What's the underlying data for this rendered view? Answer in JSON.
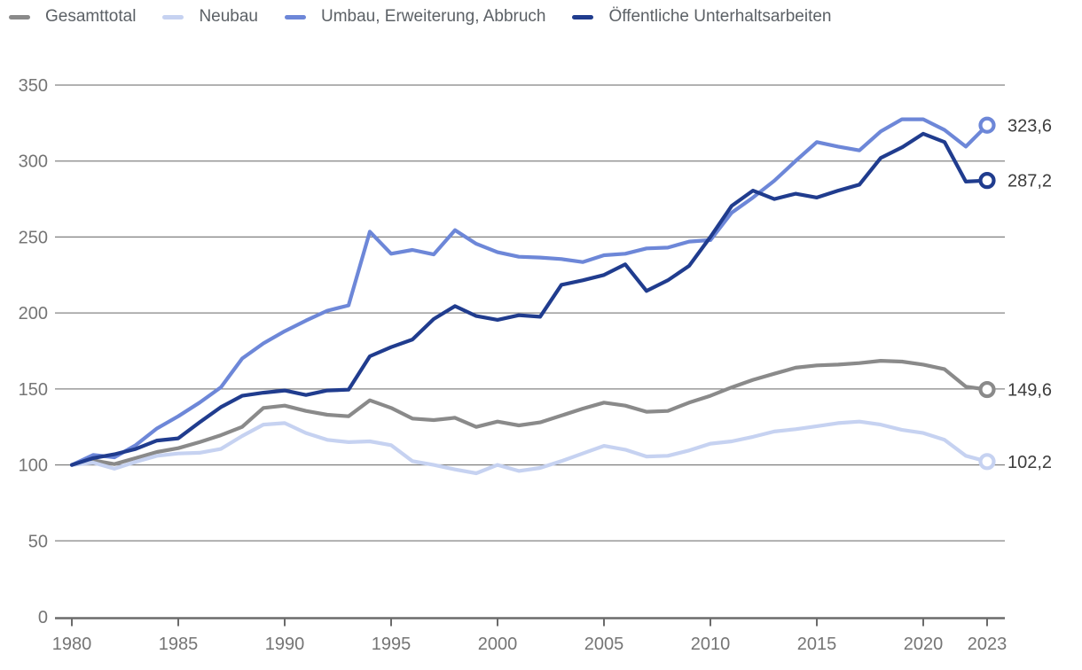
{
  "legend": {
    "items": [
      {
        "label": "Gesamttotal",
        "color": "#8a8a8a"
      },
      {
        "label": "Neubau",
        "color": "#c6d2f1"
      },
      {
        "label": "Umbau, Erweiterung, Abbruch",
        "color": "#6d87d8"
      },
      {
        "label": "Öffentliche Unterhaltsarbeiten",
        "color": "#203c8e"
      }
    ]
  },
  "chart_data": {
    "type": "line",
    "title": "",
    "xlabel": "",
    "ylabel": "",
    "x": [
      1980,
      1981,
      1982,
      1983,
      1984,
      1985,
      1986,
      1987,
      1988,
      1989,
      1990,
      1991,
      1992,
      1993,
      1994,
      1995,
      1996,
      1997,
      1998,
      1999,
      2000,
      2001,
      2002,
      2003,
      2004,
      2005,
      2006,
      2007,
      2008,
      2009,
      2010,
      2011,
      2012,
      2013,
      2014,
      2015,
      2016,
      2017,
      2018,
      2019,
      2020,
      2021,
      2022,
      2023
    ],
    "x_ticks": [
      1980,
      1985,
      1990,
      1995,
      2000,
      2005,
      2010,
      2015,
      2020,
      2023
    ],
    "y_ticks": [
      0,
      50,
      100,
      150,
      200,
      250,
      300,
      350
    ],
    "ylim": [
      0,
      350
    ],
    "grid": "horizontal",
    "legend_position": "top",
    "series": [
      {
        "name": "Gesamttotal",
        "color": "#8a8a8a",
        "end_label": "149,6",
        "end_value": 149.6,
        "values": [
          100,
          103,
          100.5,
          104.5,
          108.5,
          111,
          115,
          119.5,
          125,
          137.5,
          139,
          135.5,
          133,
          132,
          142.5,
          137.5,
          130.5,
          129.5,
          131,
          125,
          128.5,
          126,
          128,
          132.5,
          137,
          141,
          139,
          135,
          135.5,
          141,
          145.5,
          151,
          156,
          160,
          164,
          165.5,
          166,
          167,
          168.5,
          168,
          166,
          163,
          151.5,
          149.6
        ]
      },
      {
        "name": "Neubau",
        "color": "#c6d2f1",
        "end_label": "102,2",
        "end_value": 102.2,
        "values": [
          100,
          101.5,
          97.5,
          102,
          106,
          107.5,
          108,
          110.5,
          119,
          126.5,
          127.5,
          121,
          116.5,
          115,
          115.5,
          113,
          102.5,
          100,
          97,
          94.5,
          100,
          96,
          98,
          102.5,
          107.5,
          112.5,
          110,
          105.5,
          106,
          109.5,
          114,
          115.5,
          118.5,
          122,
          123.5,
          125.5,
          127.5,
          128.5,
          126.5,
          123,
          121,
          116.5,
          106,
          102.2
        ]
      },
      {
        "name": "Umbau, Erweiterung, Abbruch",
        "color": "#6d87d8",
        "end_label": "323,6",
        "end_value": 323.6,
        "values": [
          100,
          106.5,
          105,
          113,
          124,
          132,
          141,
          151,
          170,
          180,
          188,
          195,
          201.5,
          205,
          253.5,
          239,
          241.5,
          238.5,
          254.5,
          245.5,
          240,
          237,
          236.5,
          235.5,
          233.5,
          238,
          239,
          242.5,
          243,
          247,
          248,
          266,
          276,
          287,
          300,
          312.5,
          309.5,
          307,
          319.5,
          327.5,
          327.5,
          320.5,
          309.5,
          323.6
        ]
      },
      {
        "name": "Öffentliche Unterhaltsarbeiten",
        "color": "#203c8e",
        "end_label": "287,2",
        "end_value": 287.2,
        "values": [
          100,
          104.5,
          107,
          110.5,
          116,
          117.5,
          128,
          138,
          145.5,
          147.5,
          149,
          146,
          149,
          149.5,
          171.5,
          177.5,
          182.5,
          196,
          204.5,
          198,
          195.5,
          198.5,
          197.5,
          218.5,
          221.5,
          225,
          232,
          214.5,
          221.5,
          231,
          250,
          270.5,
          280.5,
          275,
          278.5,
          276,
          280.5,
          284.5,
          302,
          309,
          318,
          312.5,
          286.5,
          287.2
        ]
      }
    ]
  }
}
